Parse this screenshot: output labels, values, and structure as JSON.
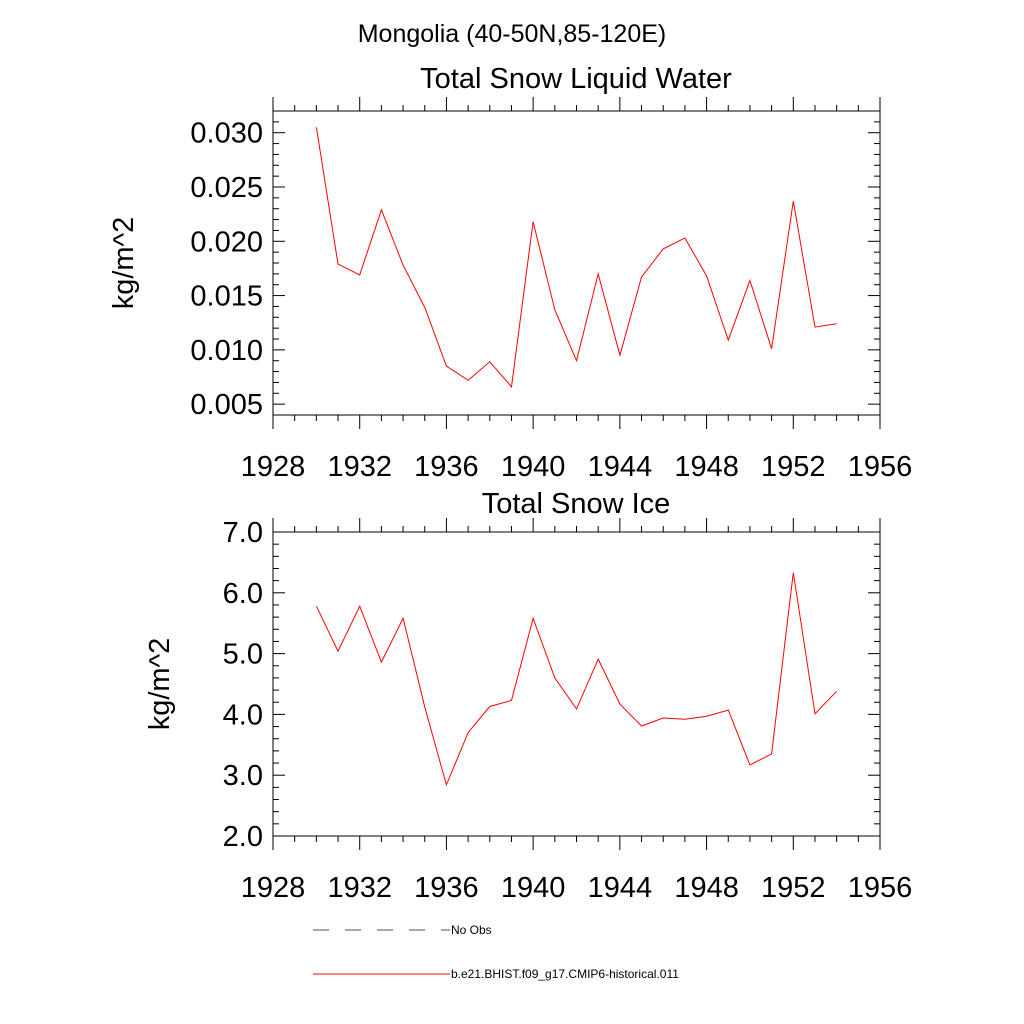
{
  "figure": {
    "title": "Mongolia (40-50N,85-120E)"
  },
  "chart_data": [
    {
      "type": "line",
      "title": "Total Snow Liquid Water",
      "xlabel": "",
      "ylabel": "kg/m^2",
      "xlim": [
        1928,
        1956
      ],
      "ylim": [
        0.004,
        0.032
      ],
      "x_ticks": [
        "1928",
        "1932",
        "1936",
        "1940",
        "1944",
        "1948",
        "1952",
        "1956"
      ],
      "y_ticks": [
        "0.005",
        "0.010",
        "0.015",
        "0.020",
        "0.025",
        "0.030"
      ],
      "grid": false,
      "series": [
        {
          "name": "b.e21.BHIST.f09_g17.CMIP6-historical.011",
          "color": "#ff0000",
          "x": [
            1930,
            1931,
            1932,
            1933,
            1934,
            1935,
            1936,
            1937,
            1938,
            1939,
            1940,
            1941,
            1942,
            1943,
            1944,
            1945,
            1946,
            1947,
            1948,
            1949,
            1950,
            1951,
            1952,
            1953,
            1954
          ],
          "values": [
            0.0305,
            0.0179,
            0.0169,
            0.0229,
            0.0178,
            0.0139,
            0.0085,
            0.0072,
            0.0089,
            0.0066,
            0.0218,
            0.0137,
            0.009,
            0.017,
            0.0095,
            0.0167,
            0.0193,
            0.0203,
            0.0168,
            0.0109,
            0.0164,
            0.0101,
            0.0237,
            0.0121,
            0.0124
          ]
        }
      ]
    },
    {
      "type": "line",
      "title": "Total Snow Ice",
      "xlabel": "",
      "ylabel": "kg/m^2",
      "xlim": [
        1928,
        1956
      ],
      "ylim": [
        2.0,
        7.0
      ],
      "x_ticks": [
        "1928",
        "1932",
        "1936",
        "1940",
        "1944",
        "1948",
        "1952",
        "1956"
      ],
      "y_ticks": [
        "2.0",
        "3.0",
        "4.0",
        "5.0",
        "6.0",
        "7.0"
      ],
      "grid": false,
      "series": [
        {
          "name": "b.e21.BHIST.f09_g17.CMIP6-historical.011",
          "color": "#ff0000",
          "x": [
            1930,
            1931,
            1932,
            1933,
            1934,
            1935,
            1936,
            1937,
            1938,
            1939,
            1940,
            1941,
            1942,
            1943,
            1944,
            1945,
            1946,
            1947,
            1948,
            1949,
            1950,
            1951,
            1952,
            1953,
            1954
          ],
          "values": [
            5.78,
            5.04,
            5.78,
            4.86,
            5.58,
            4.12,
            2.84,
            3.7,
            4.13,
            4.23,
            5.58,
            4.6,
            4.09,
            4.91,
            4.17,
            3.81,
            3.94,
            3.92,
            3.97,
            4.07,
            3.17,
            3.35,
            6.33,
            4.01,
            4.38
          ]
        }
      ]
    }
  ],
  "legend": {
    "placement": "bottom",
    "items": [
      {
        "label": "No Obs",
        "style": "dashed",
        "color": "#4a4a7a"
      },
      {
        "label": "b.e21.BHIST.f09_g17.CMIP6-historical.011",
        "style": "solid",
        "color": "#ff0000"
      }
    ]
  }
}
